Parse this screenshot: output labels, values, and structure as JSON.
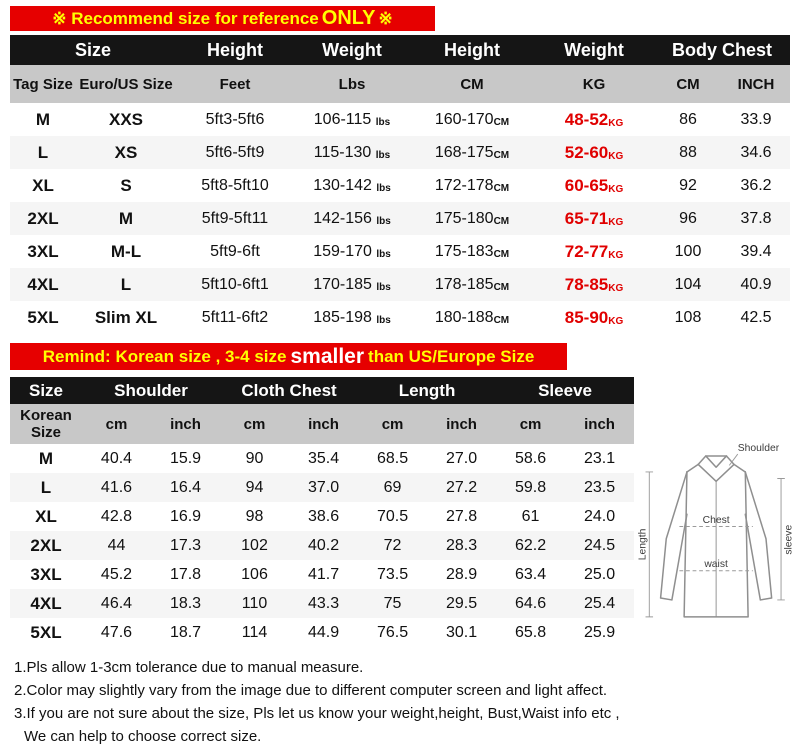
{
  "accent_colors": {
    "banner_red": "#e60000",
    "banner_yellow": "#ffff00",
    "header_black": "#151515",
    "subheader_gray": "#c8c8c8",
    "value_red": "#e00000"
  },
  "banner_top": {
    "prefix": "※ Recommend size for reference ",
    "emphasis": "ONLY",
    "suffix": " ※"
  },
  "table1": {
    "header_row1": [
      "Size",
      "Height",
      "Weight",
      "Height",
      "Weight",
      "Body Chest"
    ],
    "header_row2": [
      "Tag Size",
      "Euro/US Size",
      "Feet",
      "Lbs",
      "CM",
      "KG",
      "CM",
      "INCH"
    ],
    "units": {
      "lbs": "lbs",
      "cm": "CM",
      "kg": "KG"
    },
    "rows": [
      {
        "tag": "M",
        "euro": "XXS",
        "feet": "5ft3-5ft6",
        "lbs": "106-115",
        "cm": "160-170",
        "kg": "48-52",
        "chest_cm": "86",
        "chest_inch": "33.9"
      },
      {
        "tag": "L",
        "euro": "XS",
        "feet": "5ft6-5ft9",
        "lbs": "115-130",
        "cm": "168-175",
        "kg": "52-60",
        "chest_cm": "88",
        "chest_inch": "34.6"
      },
      {
        "tag": "XL",
        "euro": "S",
        "feet": "5ft8-5ft10",
        "lbs": "130-142",
        "cm": "172-178",
        "kg": "60-65",
        "chest_cm": "92",
        "chest_inch": "36.2"
      },
      {
        "tag": "2XL",
        "euro": "M",
        "feet": "5ft9-5ft11",
        "lbs": "142-156",
        "cm": "175-180",
        "kg": "65-71",
        "chest_cm": "96",
        "chest_inch": "37.8"
      },
      {
        "tag": "3XL",
        "euro": "M-L",
        "feet": "5ft9-6ft",
        "lbs": "159-170",
        "cm": "175-183",
        "kg": "72-77",
        "chest_cm": "100",
        "chest_inch": "39.4"
      },
      {
        "tag": "4XL",
        "euro": "L",
        "feet": "5ft10-6ft1",
        "lbs": "170-185",
        "cm": "178-185",
        "kg": "78-85",
        "chest_cm": "104",
        "chest_inch": "40.9"
      },
      {
        "tag": "5XL",
        "euro": "Slim XL",
        "feet": "5ft11-6ft2",
        "lbs": "185-198",
        "cm": "180-188",
        "kg": "85-90",
        "chest_cm": "108",
        "chest_inch": "42.5"
      }
    ]
  },
  "banner_remind": {
    "prefix": "Remind: Korean size , 3-4 size ",
    "emphasis": "smaller",
    "suffix": " than US/Europe Size"
  },
  "table2": {
    "header_row1": [
      "Size",
      "Shoulder",
      "Cloth Chest",
      "Length",
      "Sleeve"
    ],
    "korean_label": "Korean Size",
    "subheader": [
      "cm",
      "inch",
      "cm",
      "inch",
      "cm",
      "inch",
      "cm",
      "inch"
    ],
    "rows": [
      {
        "size": "M",
        "cells": [
          "40.4",
          "15.9",
          "90",
          "35.4",
          "68.5",
          "27.0",
          "58.6",
          "23.1"
        ]
      },
      {
        "size": "L",
        "cells": [
          "41.6",
          "16.4",
          "94",
          "37.0",
          "69",
          "27.2",
          "59.8",
          "23.5"
        ]
      },
      {
        "size": "XL",
        "cells": [
          "42.8",
          "16.9",
          "98",
          "38.6",
          "70.5",
          "27.8",
          "61",
          "24.0"
        ]
      },
      {
        "size": "2XL",
        "cells": [
          "44",
          "17.3",
          "102",
          "40.2",
          "72",
          "28.3",
          "62.2",
          "24.5"
        ]
      },
      {
        "size": "3XL",
        "cells": [
          "45.2",
          "17.8",
          "106",
          "41.7",
          "73.5",
          "28.9",
          "63.4",
          "25.0"
        ]
      },
      {
        "size": "4XL",
        "cells": [
          "46.4",
          "18.3",
          "110",
          "43.3",
          "75",
          "29.5",
          "64.6",
          "25.4"
        ]
      },
      {
        "size": "5XL",
        "cells": [
          "47.6",
          "18.7",
          "114",
          "44.9",
          "76.5",
          "30.1",
          "65.8",
          "25.9"
        ]
      }
    ]
  },
  "diagram": {
    "shoulder": "Shoulder",
    "chest": "Chest",
    "waist": "waist",
    "length": "Length",
    "sleeve": "sleeve"
  },
  "notes": [
    "1.Pls allow 1-3cm tolerance due to manual measure.",
    "2.Color may slightly vary from the image due to different computer screen and light affect.",
    "3.If you are not sure about the size, Pls let us know your weight,height, Bust,Waist info etc ,",
    "We can help to choose correct size."
  ]
}
